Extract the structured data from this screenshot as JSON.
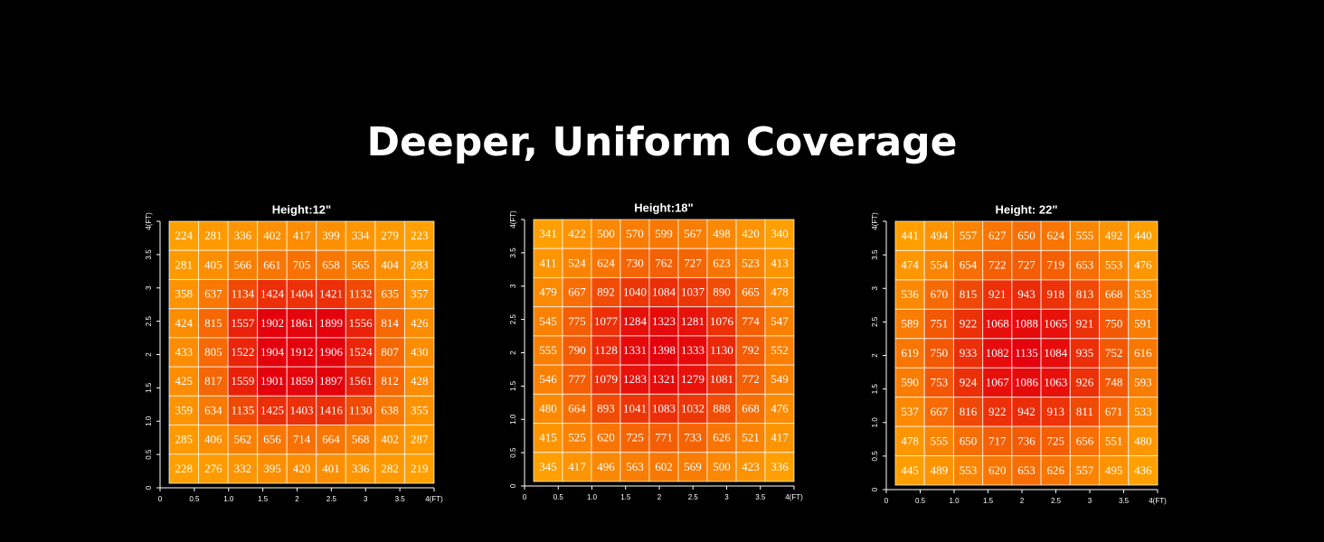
{
  "title": "Deeper, Uniform Coverage",
  "chart_data": [
    {
      "type": "heatmap",
      "title": "Height:12\"",
      "colors": [
        "#ffa000",
        "#e4000c"
      ],
      "xlim": [
        0,
        4
      ],
      "ylim": [
        0,
        4
      ],
      "xticks": [
        0,
        0.5,
        {
          "value": 1,
          "label": "1.0"
        },
        1.5,
        2,
        2.5,
        3,
        3.5,
        {
          "value": 4,
          "label": "4(FT)"
        }
      ],
      "yticks": [
        0,
        0.5,
        {
          "value": 1,
          "label": "1.0"
        },
        1.5,
        2,
        2.5,
        3,
        3.5,
        {
          "value": 4,
          "label": "4(FT)"
        }
      ],
      "values": [
        [
          224,
          281,
          336,
          402,
          417,
          399,
          334,
          279,
          223
        ],
        [
          281,
          405,
          566,
          661,
          705,
          658,
          565,
          404,
          283
        ],
        [
          358,
          637,
          1134,
          1424,
          1404,
          1421,
          1132,
          635,
          357
        ],
        [
          424,
          815,
          1557,
          1902,
          1861,
          1899,
          1556,
          814,
          426
        ],
        [
          433,
          805,
          1522,
          1904,
          1912,
          1906,
          1524,
          807,
          430
        ],
        [
          425,
          817,
          1559,
          1901,
          1859,
          1897,
          1561,
          812,
          428
        ],
        [
          359,
          634,
          1135,
          1425,
          1403,
          1416,
          1130,
          638,
          355
        ],
        [
          285,
          406,
          562,
          656,
          714,
          664,
          568,
          402,
          287
        ],
        [
          228,
          276,
          332,
          395,
          420,
          401,
          336,
          282,
          219
        ]
      ]
    },
    {
      "type": "heatmap",
      "title": "Height:18\"",
      "colors": [
        "#ffa000",
        "#e4000c"
      ],
      "xlim": [
        0,
        4
      ],
      "ylim": [
        0,
        4
      ],
      "xticks": [
        0,
        0.5,
        {
          "value": 1,
          "label": "1.0"
        },
        1.5,
        2,
        2.5,
        3,
        3.5,
        {
          "value": 4,
          "label": "4(FT)"
        }
      ],
      "yticks": [
        0,
        0.5,
        {
          "value": 1,
          "label": "1.0"
        },
        1.5,
        2,
        2.5,
        3,
        3.5,
        {
          "value": 4,
          "label": "4(FT)"
        }
      ],
      "values": [
        [
          341,
          422,
          500,
          570,
          599,
          567,
          498,
          420,
          340
        ],
        [
          411,
          524,
          624,
          730,
          762,
          727,
          623,
          523,
          413
        ],
        [
          479,
          667,
          892,
          1040,
          1084,
          1037,
          890,
          665,
          478
        ],
        [
          545,
          775,
          1077,
          1284,
          1323,
          1281,
          1076,
          774,
          547
        ],
        [
          555,
          790,
          1128,
          1331,
          1398,
          1333,
          1130,
          792,
          552
        ],
        [
          546,
          777,
          1079,
          1283,
          1321,
          1279,
          1081,
          772,
          549
        ],
        [
          480,
          664,
          893,
          1041,
          1083,
          1032,
          888,
          668,
          476
        ],
        [
          415,
          525,
          620,
          725,
          771,
          733,
          626,
          521,
          417
        ],
        [
          345,
          417,
          496,
          563,
          602,
          569,
          500,
          423,
          336
        ]
      ]
    },
    {
      "type": "heatmap",
      "title": "Height: 22\"",
      "colors": [
        "#ffa000",
        "#e4000c"
      ],
      "xlim": [
        0,
        4
      ],
      "ylim": [
        0,
        4
      ],
      "xticks": [
        0,
        0.5,
        {
          "value": 1,
          "label": "1.0"
        },
        1.5,
        2,
        2.5,
        3,
        3.5,
        {
          "value": 4,
          "label": "4(FT)"
        }
      ],
      "yticks": [
        0,
        0.5,
        {
          "value": 1,
          "label": "1.0"
        },
        1.5,
        2,
        2.5,
        3,
        3.5,
        {
          "value": 4,
          "label": "4(FT)"
        }
      ],
      "values": [
        [
          441,
          494,
          557,
          627,
          650,
          624,
          555,
          492,
          440
        ],
        [
          474,
          554,
          654,
          722,
          727,
          719,
          653,
          553,
          476
        ],
        [
          536,
          670,
          815,
          921,
          943,
          918,
          813,
          668,
          535
        ],
        [
          589,
          751,
          922,
          1068,
          1088,
          1065,
          921,
          750,
          591
        ],
        [
          619,
          750,
          933,
          1082,
          1135,
          1084,
          935,
          752,
          616
        ],
        [
          590,
          753,
          924,
          1067,
          1086,
          1063,
          926,
          748,
          593
        ],
        [
          537,
          667,
          816,
          922,
          942,
          913,
          811,
          671,
          533
        ],
        [
          478,
          555,
          650,
          717,
          736,
          725,
          656,
          551,
          480
        ],
        [
          445,
          489,
          553,
          620,
          653,
          626,
          557,
          495,
          436
        ]
      ]
    }
  ]
}
